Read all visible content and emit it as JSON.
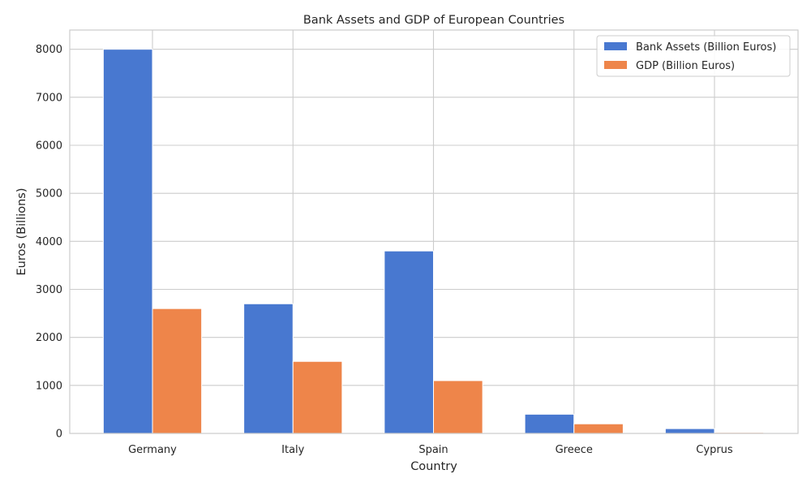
{
  "chart_data": {
    "type": "bar",
    "title": "Bank Assets and GDP of European Countries",
    "xlabel": "Country",
    "ylabel": "Euros (Billions)",
    "categories": [
      "Germany",
      "Italy",
      "Spain",
      "Greece",
      "Cyprus"
    ],
    "series": [
      {
        "name": "Bank Assets (Billion Euros)",
        "color": "#4878d0",
        "values": [
          8000,
          2700,
          3800,
          400,
          100
        ]
      },
      {
        "name": "GDP (Billion Euros)",
        "color": "#ee854a",
        "values": [
          2600,
          1500,
          1100,
          200,
          20
        ]
      }
    ],
    "ylim": [
      0,
      8400
    ],
    "yticks": [
      0,
      1000,
      2000,
      3000,
      4000,
      5000,
      6000,
      7000,
      8000
    ],
    "grid": true,
    "legend_position": "top-right",
    "colors": {
      "grid": "#cccccc",
      "axes_edge": "#cccccc",
      "text": "#262626"
    }
  }
}
